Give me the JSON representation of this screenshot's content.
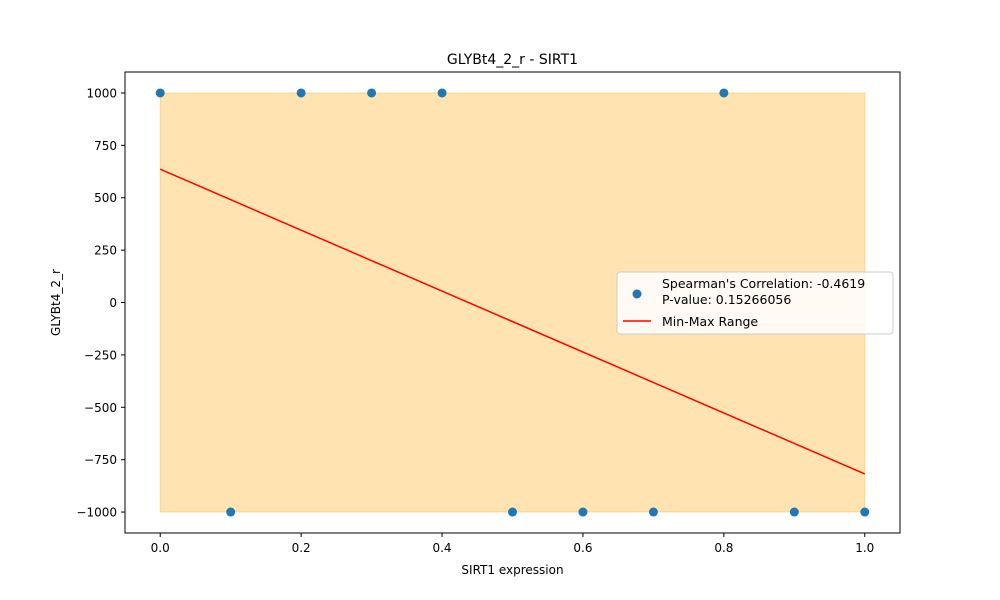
{
  "chart_data": {
    "type": "scatter",
    "title": "GLYBt4_2_r - SIRT1",
    "xlabel": "SIRT1 expression",
    "ylabel": "GLYBt4_2_r",
    "xlim": [
      -0.05,
      1.05
    ],
    "ylim": [
      -1100,
      1100
    ],
    "xticks": [
      0.0,
      0.2,
      0.4,
      0.6,
      0.8,
      1.0
    ],
    "xtick_labels": [
      "0.0",
      "0.2",
      "0.4",
      "0.6",
      "0.8",
      "1.0"
    ],
    "yticks": [
      1000,
      750,
      500,
      250,
      0,
      -250,
      -500,
      -750,
      -1000
    ],
    "ytick_labels": [
      "1000",
      "750",
      "500",
      "250",
      "0",
      "−250",
      "−500",
      "−750",
      "−1000"
    ],
    "grid": false,
    "legend_position": "center-right",
    "series": [
      {
        "kind": "scatter",
        "name": "Spearman's Correlation: -0.4619\nP-value: 0.15266056",
        "color": "#1f77b4",
        "x": [
          0.0,
          0.1,
          0.2,
          0.3,
          0.4,
          0.5,
          0.6,
          0.7,
          0.8,
          0.9,
          1.0
        ],
        "y": [
          1000,
          -1000,
          1000,
          1000,
          1000,
          -1000,
          -1000,
          -1000,
          1000,
          -1000,
          -1000
        ]
      },
      {
        "kind": "line",
        "name": "Min-Max Range",
        "color": "#ff0000",
        "x": [
          0.0,
          1.0
        ],
        "y": [
          636,
          -818
        ]
      }
    ],
    "band": {
      "color": "#ffa500",
      "opacity": 0.3,
      "x": [
        0.0,
        1.0
      ],
      "y_low": -1000,
      "y_high": 1000
    },
    "legend": {
      "entries": [
        {
          "lines": [
            "Spearman's Correlation: -0.4619",
            "P-value: 0.15266056"
          ],
          "marker": "dot",
          "color": "#1f77b4"
        },
        {
          "lines": [
            "Min-Max Range"
          ],
          "marker": "line",
          "color": "#ff0000"
        }
      ]
    }
  }
}
